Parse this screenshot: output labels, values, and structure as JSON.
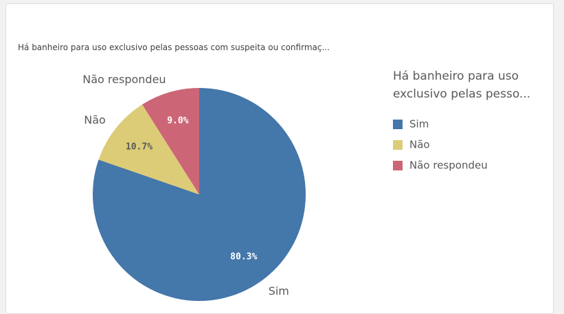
{
  "chart_data": {
    "type": "pie",
    "title": "Há banheiro para uso exclusivo pelas pessoas com suspeita ou confirmaç...",
    "legend_title": "Há banheiro para uso exclusivo pelas pesso...",
    "categories": [
      "Sim",
      "Não",
      "Não respondeu"
    ],
    "values": [
      80.3,
      10.7,
      9.0
    ],
    "value_labels": [
      "80.3%",
      "10.7%",
      "9.0%"
    ],
    "colors": [
      "#4477aa",
      "#ddcc77",
      "#cc6677"
    ],
    "label_colors": [
      "#ffffff",
      "#595959",
      "#ffffff"
    ],
    "legend": "right"
  }
}
